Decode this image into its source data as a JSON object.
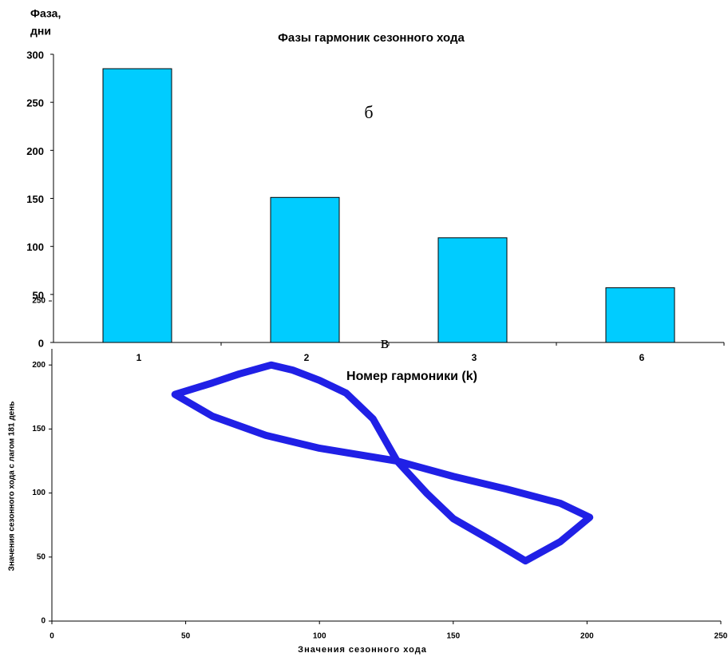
{
  "chart_data": [
    {
      "type": "bar",
      "title": "Фазы гармоник сезонного хода",
      "y_label": [
        "Фаза,",
        "дни"
      ],
      "x_label": "Номер гармоники (k)",
      "annotation": "б",
      "categories": [
        "1",
        "2",
        "3",
        "6"
      ],
      "values": [
        285,
        151,
        109,
        57
      ],
      "color": "#00ccff",
      "ylim": [
        0,
        300
      ],
      "yticks": [
        0,
        50,
        100,
        150,
        200,
        250,
        300
      ]
    },
    {
      "type": "line",
      "x_label": "Значения сезонного хода",
      "y_label": "Значения сезонного хода с лагом 181 день",
      "annotation": "в",
      "x": [
        46,
        60,
        70,
        82,
        90,
        100,
        110,
        120,
        129,
        140,
        150,
        165,
        177,
        190,
        201,
        190,
        170,
        150,
        129,
        100,
        80,
        60,
        46
      ],
      "values": [
        177,
        186,
        193,
        200,
        196,
        188,
        178,
        158,
        125,
        100,
        80,
        62,
        47,
        62,
        81,
        92,
        103,
        113,
        125,
        135,
        145,
        160,
        177
      ],
      "color": "#2020e6",
      "xlim": [
        0,
        250
      ],
      "xticks": [
        0,
        50,
        100,
        150,
        200,
        250
      ],
      "ylim": [
        0,
        250
      ],
      "yticks": [
        0,
        50,
        100,
        150,
        200,
        250
      ]
    }
  ]
}
